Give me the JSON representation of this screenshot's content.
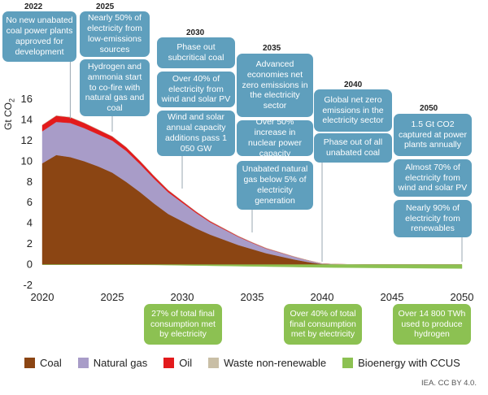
{
  "chart_data": {
    "type": "area",
    "ylabel": "Gt CO2",
    "ylabel_main": "Gt CO",
    "ylabel_sub": "2",
    "ylim": [
      -2,
      16
    ],
    "yticks": [
      -2,
      0,
      2,
      4,
      6,
      8,
      10,
      12,
      14,
      16
    ],
    "xlim": [
      2020,
      2050
    ],
    "xticks": [
      2020,
      2025,
      2030,
      2035,
      2040,
      2045,
      2050
    ],
    "x": [
      2020,
      2021,
      2022,
      2023,
      2024,
      2025,
      2026,
      2027,
      2028,
      2029,
      2030,
      2031,
      2032,
      2033,
      2034,
      2035,
      2036,
      2037,
      2038,
      2039,
      2040,
      2041,
      2042,
      2043,
      2044,
      2045,
      2046,
      2047,
      2048,
      2049,
      2050
    ],
    "series": [
      {
        "name": "Coal",
        "color": "#8b4513",
        "values": [
          9.8,
          10.6,
          10.4,
          10.0,
          9.5,
          8.9,
          8.0,
          7.0,
          5.9,
          4.9,
          4.2,
          3.5,
          2.9,
          2.4,
          1.9,
          1.5,
          1.1,
          0.8,
          0.5,
          0.25,
          0.05,
          0.02,
          0.01,
          0,
          0,
          0,
          0,
          0,
          0,
          0,
          0
        ]
      },
      {
        "name": "Natural gas",
        "color": "#a89cc8",
        "values": [
          3.1,
          3.2,
          3.3,
          3.2,
          3.1,
          3.1,
          3.0,
          2.7,
          2.4,
          2.1,
          1.8,
          1.5,
          1.2,
          1.0,
          0.8,
          0.6,
          0.45,
          0.35,
          0.25,
          0.15,
          0.05,
          0.02,
          0.01,
          0,
          0,
          0,
          0,
          0,
          0,
          0,
          0
        ]
      },
      {
        "name": "Oil",
        "color": "#e31a1c",
        "values": [
          0.6,
          0.6,
          0.55,
          0.5,
          0.45,
          0.4,
          0.35,
          0.3,
          0.25,
          0.2,
          0.15,
          0.12,
          0.1,
          0.08,
          0.06,
          0.05,
          0.04,
          0.03,
          0.02,
          0.01,
          0,
          0,
          0,
          0,
          0,
          0,
          0,
          0,
          0,
          0,
          0
        ]
      },
      {
        "name": "Waste non-renewable",
        "color": "#c9bfa6",
        "values": [
          0,
          0,
          0,
          0,
          0,
          0,
          0,
          0,
          0,
          0,
          0,
          0,
          0,
          0,
          0,
          0,
          0,
          0,
          0,
          0,
          0,
          0,
          0,
          0,
          0,
          0,
          0,
          0,
          0,
          0,
          0
        ]
      },
      {
        "name": "Bioenergy with CCUS",
        "color": "#8cc152",
        "values": [
          0,
          0,
          0,
          0,
          0,
          0,
          -0.01,
          -0.02,
          -0.03,
          -0.05,
          -0.07,
          -0.09,
          -0.11,
          -0.13,
          -0.15,
          -0.17,
          -0.19,
          -0.21,
          -0.23,
          -0.25,
          -0.27,
          -0.29,
          -0.3,
          -0.31,
          -0.32,
          -0.33,
          -0.34,
          -0.35,
          -0.36,
          -0.37,
          -0.38
        ]
      }
    ],
    "annotations": {
      "y2022": {
        "year": "2022",
        "boxes": [
          "No new unabated coal power plants approved for development"
        ]
      },
      "y2025": {
        "year": "2025",
        "boxes": [
          "Nearly 50% of electricity from low-emissions sources",
          "Hydrogen and ammonia start to co-fire with natural gas and coal"
        ]
      },
      "y2030": {
        "year": "2030",
        "boxes": [
          "Phase out subcritical coal",
          "Over 40% of electricity from wind and solar PV",
          "Wind and solar annual capacity additions pass 1 050 GW"
        ]
      },
      "y2035": {
        "year": "2035",
        "boxes": [
          "Advanced economies net zero emissions in the electricity sector",
          "Over 50% increase in nuclear power capacity",
          "Unabated natural gas below 5% of electricity generation"
        ]
      },
      "y2040": {
        "year": "2040",
        "boxes": [
          "Global net zero emissions in the electricity sector",
          "Phase out of all unabated coal"
        ]
      },
      "y2050": {
        "year": "2050",
        "boxes": [
          "1.5 Gt CO2 captured at power plants annually",
          "Almost 70% of electricity from wind and solar PV",
          "Nearly 90% of electricity from renewables"
        ]
      },
      "bottom": [
        "27% of total final consumption met by electricity",
        "Over 40% of  total final consumption met by electricity",
        "Over 14 800 TWh used to produce hydrogen"
      ]
    }
  },
  "credit": "IEA. CC BY 4.0."
}
